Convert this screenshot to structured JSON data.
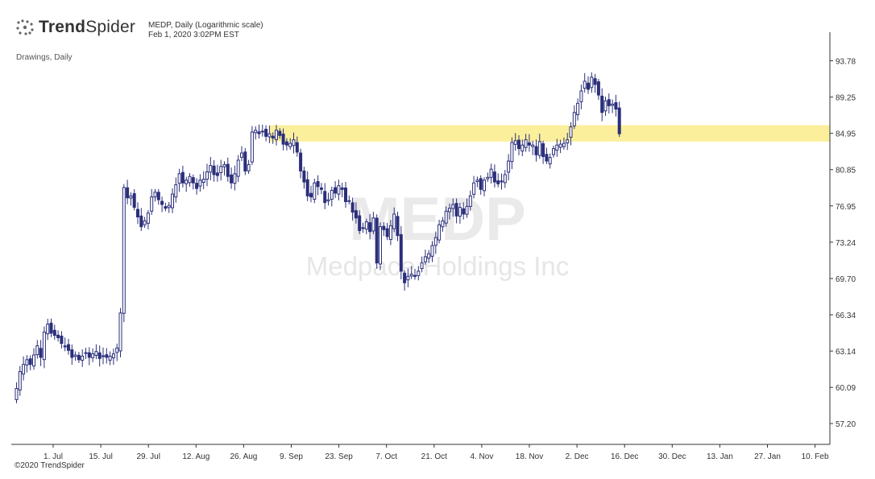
{
  "brand": {
    "bold": "Trend",
    "light": "Spider",
    "copyright": "©2020 TrendSpider",
    "icon": "spider-dots-icon"
  },
  "header": {
    "title": "MEDP, Daily (Logarithmic scale)",
    "timestamp": "Feb 1, 2020 3:02PM EST",
    "drawings_label": "Drawings, Daily"
  },
  "watermark": {
    "ticker": "MEDP",
    "company": "Medpace Holdings Inc"
  },
  "colors": {
    "candle": "#2b2f7a",
    "zone": "#fbef9c",
    "axis": "#333333",
    "watermark": "#e5e5e5"
  },
  "chart_data": {
    "type": "candlestick",
    "scale": "log",
    "ylim": [
      55.6,
      97.5
    ],
    "y_ticks": [
      "93.78",
      "89.25",
      "84.95",
      "80.85",
      "76.95",
      "73.24",
      "69.70",
      "66.34",
      "63.14",
      "60.09",
      "57.20"
    ],
    "y_tick_values": [
      93.78,
      89.25,
      84.95,
      80.85,
      76.95,
      73.24,
      69.7,
      66.34,
      63.14,
      60.09,
      57.2
    ],
    "x_ticks": [
      "1. Jul",
      "15. Jul",
      "29. Jul",
      "12. Aug",
      "26. Aug",
      "9. Sep",
      "23. Sep",
      "7. Oct",
      "21. Oct",
      "4. Nov",
      "18. Nov",
      "2. Dec",
      "16. Dec",
      "30. Dec",
      "13. Jan",
      "27. Jan",
      "10. Feb"
    ],
    "support_zone": {
      "from": "6. Sep",
      "to": "10. Feb",
      "low": 84.0,
      "high": 85.9
    },
    "candles_close": [
      60.0,
      61.4,
      62.0,
      62.4,
      62.0,
      62.8,
      63.6,
      62.6,
      64.8,
      65.5,
      64.7,
      64.5,
      64.3,
      63.8,
      63.5,
      63.2,
      62.6,
      62.8,
      62.4,
      62.7,
      63.0,
      62.6,
      62.9,
      63.1,
      62.5,
      62.7,
      62.6,
      62.7,
      62.9,
      63.4,
      66.5,
      78.9,
      77.8,
      78.0,
      76.8,
      75.8,
      74.8,
      75.4,
      76.2,
      77.9,
      78.4,
      77.6,
      77.1,
      76.7,
      77.0,
      78.2,
      79.2,
      80.4,
      79.4,
      79.7,
      80.1,
      79.4,
      78.8,
      79.7,
      79.8,
      80.6,
      81.3,
      80.3,
      80.2,
      81.2,
      81.4,
      80.1,
      79.4,
      80.4,
      81.9,
      82.7,
      80.7,
      81.4,
      85.1,
      85.3,
      84.9,
      85.2,
      84.6,
      84.9,
      84.4,
      85.3,
      84.7,
      83.7,
      83.6,
      83.8,
      84.2,
      82.8,
      80.7,
      79.5,
      78.0,
      77.9,
      79.4,
      79.0,
      78.7,
      77.3,
      77.6,
      78.6,
      78.3,
      79.1,
      78.7,
      77.4,
      77.5,
      76.3,
      75.7,
      74.4,
      74.7,
      75.3,
      74.3,
      75.7,
      71.2,
      74.8,
      74.5,
      73.8,
      74.9,
      76.1,
      73.9,
      70.4,
      69.3,
      69.9,
      70.1,
      69.9,
      70.4,
      71.2,
      71.8,
      72.1,
      72.9,
      73.7,
      75.0,
      75.4,
      76.4,
      76.7,
      77.1,
      75.9,
      76.8,
      76.1,
      76.9,
      78.0,
      79.4,
      79.7,
      78.7,
      79.7,
      80.0,
      80.9,
      79.5,
      79.3,
      79.6,
      80.3,
      81.8,
      83.9,
      84.1,
      83.2,
      83.6,
      84.2,
      83.6,
      83.6,
      82.5,
      84.0,
      82.3,
      81.8,
      82.2,
      83.2,
      83.6,
      83.7,
      83.8,
      84.2,
      85.7,
      87.4,
      88.5,
      90.0,
      91.2,
      90.2,
      91.7,
      90.8,
      89.5,
      87.4,
      88.8,
      88.2,
      88.4,
      87.8,
      84.9
    ]
  }
}
